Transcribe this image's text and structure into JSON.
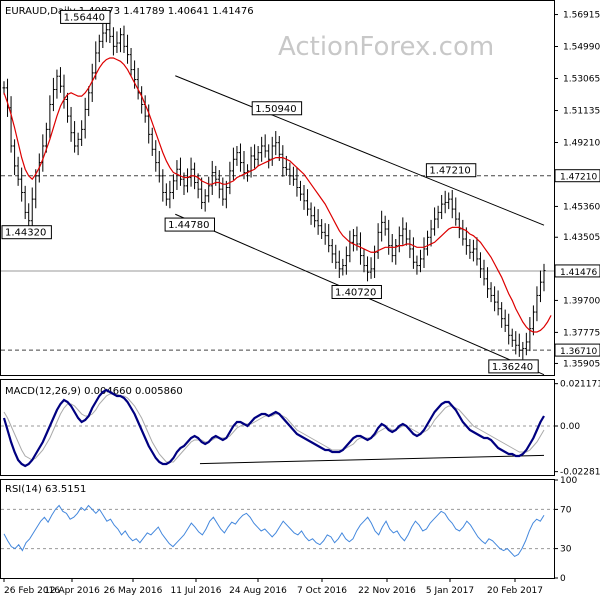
{
  "chart_data": [
    {
      "type": "candlestick",
      "title": "EURAUD,Daily  1.40873 1.41789 1.40641 1.41476",
      "watermark": "ActionForex.com",
      "ylim": [
        1.3521,
        1.5773
      ],
      "yticks": [
        "1.56915",
        "1.54990",
        "1.53065",
        "1.51135",
        "1.49210",
        "1.47210",
        "1.45360",
        "1.43505",
        "1.41476",
        "1.39700",
        "1.37775",
        "1.36710",
        "1.35905"
      ],
      "ytick_values": [
        1.56915,
        1.5499,
        1.53065,
        1.51135,
        1.4921,
        1.4721,
        1.4536,
        1.43505,
        1.41476,
        1.397,
        1.37775,
        1.3671,
        1.35905
      ],
      "highlighted_levels": [
        {
          "label": "1.47210",
          "value": 1.4721,
          "style": "dashed"
        },
        {
          "label": "1.41476",
          "value": 1.41476,
          "style": "current"
        },
        {
          "label": "1.36710",
          "value": 1.3671,
          "style": "dashed"
        }
      ],
      "annotations": [
        {
          "text": "1.56440",
          "x": "2016-04-20",
          "value": 1.5644
        },
        {
          "text": "1.50940",
          "x": "2016-08-30",
          "value": 1.5094
        },
        {
          "text": "1.47210",
          "x": "2016-12-28",
          "value": 1.4721
        },
        {
          "text": "1.44320",
          "x": "2016-02-26",
          "value": 1.4432
        },
        {
          "text": "1.44780",
          "x": "2016-07-01",
          "value": 1.4478
        },
        {
          "text": "1.40720",
          "x": "2016-10-24",
          "value": 1.4072
        },
        {
          "text": "1.36240",
          "x": "2017-02-09",
          "value": 1.3624
        }
      ],
      "channel": {
        "upper": [
          {
            "x": "2016-06-21",
            "value": 1.5323
          },
          {
            "x": "2017-03-02",
            "value": 1.4423
          }
        ],
        "lower": [
          {
            "x": "2016-06-21",
            "value": 1.4489
          },
          {
            "x": "2017-03-02",
            "value": 1.3523
          }
        ]
      },
      "series": [
        {
          "name": "price",
          "values": [
            1.525,
            1.513,
            1.49,
            1.478,
            1.47,
            1.462,
            1.45,
            1.445,
            1.458,
            1.472,
            1.48,
            1.49,
            1.5,
            1.515,
            1.524,
            1.532,
            1.526,
            1.518,
            1.508,
            1.498,
            1.49,
            1.494,
            1.5,
            1.512,
            1.522,
            1.534,
            1.546,
            1.553,
            1.558,
            1.56,
            1.556,
            1.55,
            1.552,
            1.557,
            1.55,
            1.545,
            1.536,
            1.53,
            1.522,
            1.515,
            1.508,
            1.497,
            1.488,
            1.48,
            1.472,
            1.462,
            1.458,
            1.462,
            1.469,
            1.476,
            1.47,
            1.466,
            1.471,
            1.476,
            1.468,
            1.464,
            1.456,
            1.46,
            1.466,
            1.474,
            1.47,
            1.464,
            1.458,
            1.465,
            1.475,
            1.482,
            1.486,
            1.48,
            1.474,
            1.475,
            1.484,
            1.482,
            1.486,
            1.49,
            1.487,
            1.482,
            1.49,
            1.492,
            1.485,
            1.477,
            1.476,
            1.472,
            1.47,
            1.465,
            1.461,
            1.457,
            1.452,
            1.448,
            1.445,
            1.442,
            1.438,
            1.436,
            1.43,
            1.425,
            1.42,
            1.416,
            1.418,
            1.424,
            1.432,
            1.436,
            1.431,
            1.424,
            1.418,
            1.414,
            1.416,
            1.426,
            1.438,
            1.444,
            1.44,
            1.43,
            1.424,
            1.43,
            1.436,
            1.44,
            1.434,
            1.428,
            1.42,
            1.418,
            1.422,
            1.428,
            1.435,
            1.44,
            1.446,
            1.45,
            1.455,
            1.456,
            1.458,
            1.452,
            1.446,
            1.44,
            1.434,
            1.43,
            1.426,
            1.428,
            1.422,
            1.416,
            1.41,
            1.404,
            1.4,
            1.396,
            1.392,
            1.386,
            1.382,
            1.376,
            1.373,
            1.37,
            1.367,
            1.368,
            1.372,
            1.38,
            1.39,
            1.4,
            1.408,
            1.415
          ],
          "color": "#000000"
        },
        {
          "name": "moving average",
          "values": [
            1.522,
            1.516,
            1.509,
            1.501,
            1.492,
            1.483,
            1.476,
            1.472,
            1.47,
            1.473,
            1.477,
            1.482,
            1.488,
            1.494,
            1.501,
            1.508,
            1.514,
            1.518,
            1.521,
            1.522,
            1.521,
            1.52,
            1.52,
            1.522,
            1.525,
            1.529,
            1.533,
            1.537,
            1.54,
            1.542,
            1.543,
            1.543,
            1.542,
            1.541,
            1.539,
            1.536,
            1.532,
            1.528,
            1.524,
            1.52,
            1.515,
            1.51,
            1.504,
            1.498,
            1.492,
            1.486,
            1.481,
            1.477,
            1.474,
            1.473,
            1.472,
            1.471,
            1.471,
            1.472,
            1.472,
            1.471,
            1.469,
            1.468,
            1.467,
            1.467,
            1.468,
            1.468,
            1.467,
            1.467,
            1.468,
            1.469,
            1.471,
            1.472,
            1.473,
            1.474,
            1.475,
            1.476,
            1.478,
            1.479,
            1.48,
            1.481,
            1.482,
            1.483,
            1.483,
            1.483,
            1.482,
            1.481,
            1.479,
            1.477,
            1.475,
            1.473,
            1.47,
            1.467,
            1.464,
            1.461,
            1.458,
            1.455,
            1.451,
            1.447,
            1.443,
            1.439,
            1.436,
            1.434,
            1.432,
            1.431,
            1.43,
            1.429,
            1.428,
            1.427,
            1.426,
            1.426,
            1.427,
            1.428,
            1.429,
            1.429,
            1.429,
            1.429,
            1.43,
            1.43,
            1.431,
            1.431,
            1.43,
            1.429,
            1.429,
            1.429,
            1.43,
            1.431,
            1.432,
            1.434,
            1.436,
            1.438,
            1.44,
            1.441,
            1.441,
            1.441,
            1.44,
            1.439,
            1.437,
            1.436,
            1.434,
            1.432,
            1.429,
            1.426,
            1.423,
            1.419,
            1.415,
            1.411,
            1.406,
            1.401,
            1.397,
            1.392,
            1.388,
            1.384,
            1.381,
            1.379,
            1.378,
            1.378,
            1.379,
            1.381,
            1.384,
            1.388
          ],
          "color": "#dd0000"
        }
      ]
    },
    {
      "type": "line",
      "title": "MACD(12,26,9) 0.004660 0.005860",
      "ylim": [
        -0.0245,
        0.023
      ],
      "yticks": [
        "0.021171",
        "0.00",
        "-0.022814"
      ],
      "ytick_values": [
        0.021171,
        0,
        -0.022814
      ],
      "trendline": [
        {
          "x": "2016-07-08",
          "value": -0.0188
        },
        {
          "x": "2017-03-02",
          "value": -0.0147
        }
      ],
      "series": [
        {
          "name": "MACD",
          "values": [
            0.004,
            -0.002,
            -0.008,
            -0.013,
            -0.017,
            -0.019,
            -0.02,
            -0.019,
            -0.017,
            -0.014,
            -0.011,
            -0.008,
            -0.004,
            0.0,
            0.004,
            0.008,
            0.011,
            0.013,
            0.012,
            0.01,
            0.007,
            0.004,
            0.002,
            0.003,
            0.005,
            0.009,
            0.012,
            0.015,
            0.017,
            0.018,
            0.017,
            0.016,
            0.015,
            0.015,
            0.014,
            0.012,
            0.009,
            0.006,
            0.002,
            -0.002,
            -0.006,
            -0.01,
            -0.013,
            -0.016,
            -0.018,
            -0.019,
            -0.019,
            -0.018,
            -0.016,
            -0.013,
            -0.011,
            -0.01,
            -0.008,
            -0.006,
            -0.005,
            -0.006,
            -0.008,
            -0.009,
            -0.008,
            -0.006,
            -0.005,
            -0.006,
            -0.007,
            -0.006,
            -0.003,
            0.0,
            0.002,
            0.002,
            0.001,
            0.0,
            0.002,
            0.004,
            0.005,
            0.006,
            0.006,
            0.005,
            0.006,
            0.007,
            0.006,
            0.004,
            0.002,
            0.0,
            -0.002,
            -0.004,
            -0.005,
            -0.006,
            -0.007,
            -0.008,
            -0.009,
            -0.01,
            -0.011,
            -0.012,
            -0.012,
            -0.013,
            -0.013,
            -0.013,
            -0.012,
            -0.01,
            -0.008,
            -0.006,
            -0.005,
            -0.005,
            -0.006,
            -0.007,
            -0.006,
            -0.004,
            -0.001,
            0.001,
            0.0,
            -0.002,
            -0.003,
            -0.002,
            0.0,
            0.001,
            0.0,
            -0.002,
            -0.004,
            -0.005,
            -0.004,
            -0.002,
            0.001,
            0.004,
            0.007,
            0.009,
            0.011,
            0.012,
            0.012,
            0.01,
            0.008,
            0.005,
            0.002,
            0.0,
            -0.002,
            -0.003,
            -0.004,
            -0.005,
            -0.006,
            -0.006,
            -0.007,
            -0.009,
            -0.011,
            -0.012,
            -0.013,
            -0.014,
            -0.014,
            -0.015,
            -0.015,
            -0.014,
            -0.012,
            -0.009,
            -0.006,
            -0.002,
            0.002,
            0.005
          ],
          "color": "#000080"
        },
        {
          "name": "signal",
          "values": [
            0.007,
            0.004,
            0.0,
            -0.004,
            -0.008,
            -0.012,
            -0.015,
            -0.016,
            -0.017,
            -0.016,
            -0.014,
            -0.012,
            -0.009,
            -0.006,
            -0.002,
            0.002,
            0.006,
            0.009,
            0.011,
            0.011,
            0.01,
            0.008,
            0.006,
            0.005,
            0.005,
            0.006,
            0.008,
            0.011,
            0.013,
            0.015,
            0.016,
            0.016,
            0.016,
            0.015,
            0.015,
            0.014,
            0.012,
            0.01,
            0.007,
            0.004,
            0.0,
            -0.004,
            -0.008,
            -0.011,
            -0.014,
            -0.016,
            -0.018,
            -0.018,
            -0.018,
            -0.016,
            -0.014,
            -0.012,
            -0.01,
            -0.008,
            -0.007,
            -0.007,
            -0.007,
            -0.008,
            -0.008,
            -0.007,
            -0.006,
            -0.006,
            -0.006,
            -0.006,
            -0.005,
            -0.003,
            -0.001,
            0.0,
            0.001,
            0.001,
            0.001,
            0.002,
            0.003,
            0.004,
            0.005,
            0.005,
            0.005,
            0.006,
            0.006,
            0.005,
            0.004,
            0.002,
            0.0,
            -0.002,
            -0.003,
            -0.004,
            -0.005,
            -0.006,
            -0.007,
            -0.008,
            -0.009,
            -0.01,
            -0.011,
            -0.012,
            -0.012,
            -0.012,
            -0.012,
            -0.011,
            -0.01,
            -0.009,
            -0.007,
            -0.006,
            -0.006,
            -0.006,
            -0.006,
            -0.005,
            -0.003,
            -0.002,
            -0.001,
            -0.001,
            -0.002,
            -0.002,
            -0.001,
            0.0,
            0.0,
            -0.001,
            -0.002,
            -0.003,
            -0.004,
            -0.003,
            -0.002,
            0.0,
            0.003,
            0.005,
            0.007,
            0.009,
            0.01,
            0.01,
            0.009,
            0.008,
            0.006,
            0.004,
            0.002,
            0.0,
            -0.001,
            -0.002,
            -0.003,
            -0.004,
            -0.005,
            -0.006,
            -0.007,
            -0.008,
            -0.009,
            -0.01,
            -0.011,
            -0.012,
            -0.013,
            -0.013,
            -0.013,
            -0.012,
            -0.01,
            -0.008,
            -0.005,
            -0.002
          ],
          "color": "#aaaaaa"
        }
      ]
    },
    {
      "type": "line",
      "title": "RSI(14) 63.5151",
      "ylim": [
        0,
        100
      ],
      "yticks": [
        "100",
        "70",
        "30",
        "0"
      ],
      "ytick_values": [
        100,
        70,
        30,
        0
      ],
      "reference_lines": [
        70,
        30
      ],
      "series": [
        {
          "name": "RSI",
          "values": [
            45,
            38,
            32,
            30,
            34,
            28,
            36,
            40,
            46,
            52,
            58,
            62,
            57,
            64,
            70,
            74,
            68,
            66,
            60,
            62,
            66,
            72,
            69,
            74,
            70,
            66,
            70,
            64,
            58,
            60,
            54,
            50,
            44,
            48,
            42,
            38,
            40,
            36,
            41,
            46,
            44,
            48,
            52,
            45,
            40,
            35,
            32,
            36,
            40,
            44,
            50,
            56,
            52,
            47,
            44,
            50,
            58,
            62,
            56,
            50,
            46,
            52,
            57,
            55,
            60,
            64,
            66,
            62,
            56,
            52,
            48,
            50,
            46,
            42,
            46,
            52,
            58,
            54,
            50,
            46,
            44,
            48,
            42,
            38,
            40,
            36,
            34,
            38,
            44,
            42,
            36,
            40,
            46,
            40,
            37,
            40,
            48,
            54,
            58,
            62,
            56,
            48,
            44,
            52,
            58,
            50,
            46,
            48,
            42,
            38,
            44,
            52,
            58,
            54,
            48,
            50,
            56,
            60,
            64,
            68,
            66,
            60,
            56,
            50,
            48,
            52,
            58,
            54,
            48,
            42,
            38,
            35,
            40,
            38,
            34,
            30,
            28,
            30,
            26,
            22,
            24,
            30,
            38,
            48,
            56,
            60,
            58,
            64
          ],
          "color": "#4488dd"
        }
      ]
    }
  ],
  "x_axis": {
    "ticks": [
      "26 Feb 2016",
      "12 Apr 2016",
      "26 May 2016",
      "11 Jul 2016",
      "24 Aug 2016",
      "7 Oct 2016",
      "22 Nov 2016",
      "5 Jan 2017",
      "20 Feb 2017"
    ]
  }
}
